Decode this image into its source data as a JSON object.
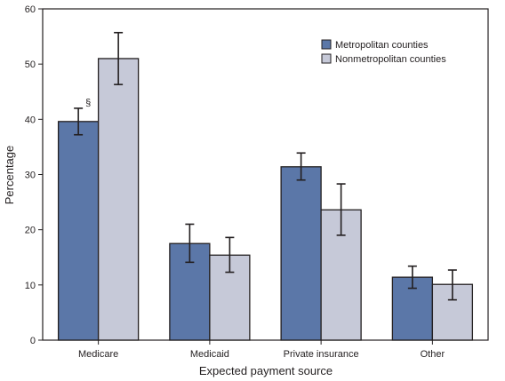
{
  "chart_data": {
    "type": "bar",
    "title": "",
    "xlabel": "Expected payment source",
    "ylabel": "Percentage",
    "ylim": [
      0,
      60
    ],
    "yticks": [
      0,
      10,
      20,
      30,
      40,
      50,
      60
    ],
    "grid": false,
    "legend_position": "top-right",
    "categories": [
      "Medicare",
      "Medicaid",
      "Private insurance",
      "Other"
    ],
    "series": [
      {
        "name": "Metropolitan counties",
        "color": "#5b77a8",
        "values": [
          39.6,
          17.5,
          31.4,
          11.4
        ],
        "error_low": [
          37.2,
          14.1,
          29.0,
          9.4
        ],
        "error_high": [
          42.0,
          21.0,
          33.9,
          13.4
        ]
      },
      {
        "name": "Nonmetropolitan counties",
        "color": "#c6c9d8",
        "values": [
          51.0,
          15.4,
          23.6,
          10.1
        ],
        "error_low": [
          46.3,
          12.3,
          19.0,
          7.3
        ],
        "error_high": [
          55.7,
          18.6,
          28.3,
          12.7
        ]
      }
    ],
    "annotations": [
      {
        "text": "§",
        "category": "Medicare",
        "series": "Metropolitan counties"
      }
    ]
  }
}
